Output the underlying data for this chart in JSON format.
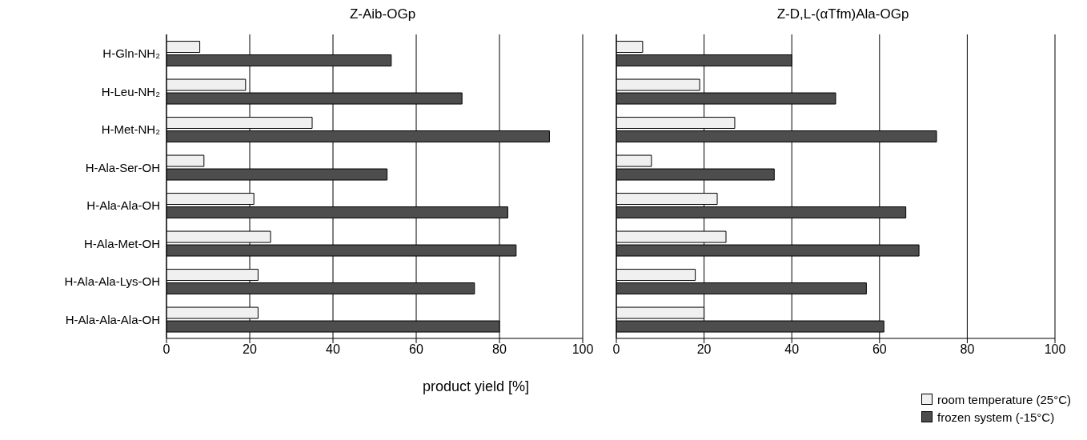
{
  "chart_data": [
    {
      "type": "bar",
      "orientation": "horizontal",
      "title": "Z-Aib-OGp",
      "xlabel": "product yield [%]",
      "categories": [
        "H-Gln-NH₂",
        "H-Leu-NH₂",
        "H-Met-NH₂",
        "H-Ala-Ser-OH",
        "H-Ala-Ala-OH",
        "H-Ala-Met-OH",
        "H-Ala-Ala-Lys-OH",
        "H-Ala-Ala-Ala-OH"
      ],
      "xlim": [
        0,
        100
      ],
      "xticks": [
        0,
        20,
        40,
        60,
        80,
        100
      ],
      "grid": "x",
      "series": [
        {
          "color": "#f0f0f0",
          "values": [
            8,
            19,
            35,
            9,
            21,
            25,
            22,
            22
          ]
        },
        {
          "color": "#4d4d4d",
          "values": [
            54,
            71,
            92,
            53,
            82,
            84,
            74,
            80
          ]
        }
      ]
    },
    {
      "type": "bar",
      "orientation": "horizontal",
      "title": "Z-D,L-(αTfm)Ala-OGp",
      "categories": [
        null,
        null,
        null,
        null,
        null,
        null,
        null,
        null
      ],
      "xlim": [
        0,
        100
      ],
      "xticks": [
        0,
        20,
        40,
        60,
        80,
        100
      ],
      "grid": "x",
      "tick_labels": "x",
      "legend": "bottom right",
      "series": [
        {
          "name": "room temperature (25°C)",
          "color": "#f0f0f0",
          "values": [
            6,
            19,
            27,
            8,
            23,
            25,
            18,
            20
          ]
        },
        {
          "name": "frozen system (-15°C)",
          "color": "#4d4d4d",
          "values": [
            40,
            50,
            73,
            36,
            66,
            69,
            57,
            61
          ]
        }
      ]
    }
  ]
}
